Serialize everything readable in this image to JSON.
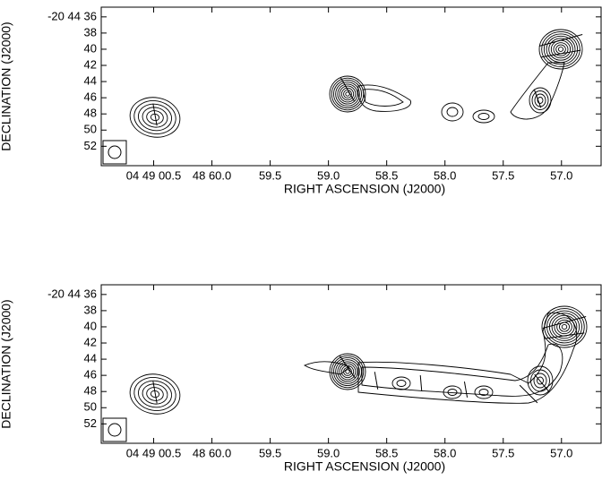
{
  "chart_data": [
    {
      "type": "contour",
      "xlabel": "RIGHT ASCENSION (J2000)",
      "ylabel": "DECLINATION (J2000)",
      "xlim": [
        60.95,
        56.66
      ],
      "ylim": [
        54.4,
        34.8
      ],
      "xticks": [
        {
          "value": 60.5,
          "label": "04 49 00.5"
        },
        {
          "value": 60.0,
          "label": "48 60.0"
        },
        59.5,
        {
          "value": 59.0,
          "label": "59.0"
        },
        58.5,
        {
          "value": 58.0,
          "label": "58.0"
        },
        57.5,
        {
          "value": 57.0,
          "label": "57.0"
        }
      ],
      "yticks": [
        {
          "value": 36,
          "label": "-20 44 36"
        },
        38,
        40,
        42,
        44,
        46,
        48,
        50,
        52
      ]
    },
    {
      "type": "contour",
      "xlabel": "RIGHT ASCENSION (J2000)",
      "ylabel": "DECLINATION (J2000)",
      "xlim": [
        60.95,
        56.66
      ],
      "ylim": [
        54.4,
        34.8
      ],
      "xticks": [
        {
          "value": 60.5,
          "label": "04 49 00.5"
        },
        {
          "value": 60.0,
          "label": "48 60.0"
        },
        59.5,
        {
          "value": 59.0,
          "label": "59.0"
        },
        58.5,
        {
          "value": 58.0,
          "label": "58.0"
        },
        57.5,
        {
          "value": 57.0,
          "label": "57.0"
        }
      ],
      "yticks": [
        {
          "value": 36,
          "label": "-20 44 36"
        },
        38,
        40,
        42,
        44,
        46,
        48,
        50,
        52
      ]
    }
  ]
}
